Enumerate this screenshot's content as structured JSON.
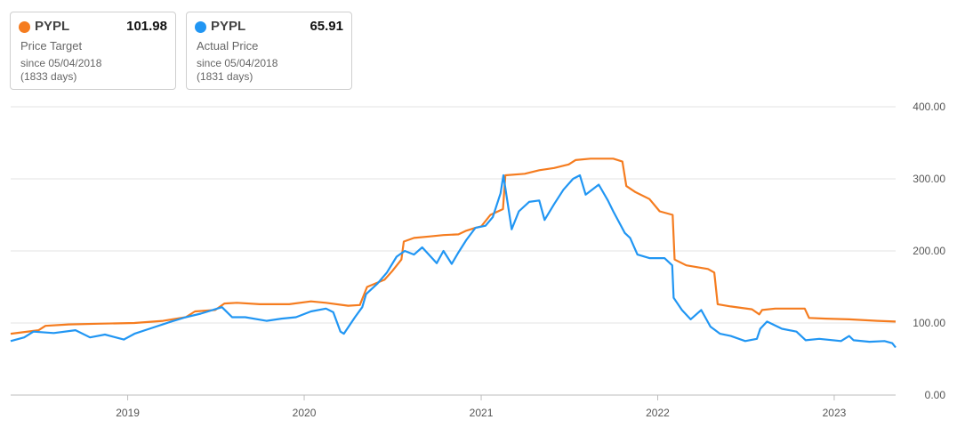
{
  "cards": [
    {
      "ticker": "PYPL",
      "value": "101.98",
      "label": "Price Target",
      "since": "since 05/04/2018",
      "days": "(1833 days)",
      "color": "#f57c1f"
    },
    {
      "ticker": "PYPL",
      "value": "65.91",
      "label": "Actual Price",
      "since": "since 05/04/2018",
      "days": "(1831 days)",
      "color": "#2196f3"
    }
  ],
  "chart_data": {
    "type": "line",
    "ylim": [
      0,
      400
    ],
    "y_ticks": [
      "400.00",
      "300.00",
      "200.00",
      "100.00",
      "0.00"
    ],
    "xlim": [
      "2018-05-04",
      "2023-05-08"
    ],
    "x_ticks": [
      "2019",
      "2020",
      "2021",
      "2022",
      "2023"
    ],
    "grid": true,
    "series": [
      {
        "name": "Price Target",
        "color": "#f57c1f",
        "points": [
          [
            "2018-05-04",
            85
          ],
          [
            "2018-07-01",
            90
          ],
          [
            "2018-07-15",
            96
          ],
          [
            "2018-09-01",
            98
          ],
          [
            "2018-11-01",
            99
          ],
          [
            "2019-01-15",
            100
          ],
          [
            "2019-03-15",
            103
          ],
          [
            "2019-05-01",
            108
          ],
          [
            "2019-05-20",
            116
          ],
          [
            "2019-07-01",
            118
          ],
          [
            "2019-07-20",
            127
          ],
          [
            "2019-08-15",
            128
          ],
          [
            "2019-10-01",
            126
          ],
          [
            "2019-12-01",
            126
          ],
          [
            "2020-01-15",
            130
          ],
          [
            "2020-02-15",
            128
          ],
          [
            "2020-04-01",
            124
          ],
          [
            "2020-04-25",
            125
          ],
          [
            "2020-05-10",
            150
          ],
          [
            "2020-06-15",
            160
          ],
          [
            "2020-07-01",
            172
          ],
          [
            "2020-07-20",
            188
          ],
          [
            "2020-07-25",
            213
          ],
          [
            "2020-08-15",
            218
          ],
          [
            "2020-09-15",
            220
          ],
          [
            "2020-10-15",
            222
          ],
          [
            "2020-11-15",
            223
          ],
          [
            "2020-12-01",
            228
          ],
          [
            "2020-12-20",
            232
          ],
          [
            "2021-01-01",
            234
          ],
          [
            "2021-01-20",
            250
          ],
          [
            "2021-02-15",
            258
          ],
          [
            "2021-02-20",
            305
          ],
          [
            "2021-04-01",
            307
          ],
          [
            "2021-05-01",
            312
          ],
          [
            "2021-06-01",
            315
          ],
          [
            "2021-07-01",
            320
          ],
          [
            "2021-07-15",
            326
          ],
          [
            "2021-08-15",
            328
          ],
          [
            "2021-10-01",
            328
          ],
          [
            "2021-10-20",
            324
          ],
          [
            "2021-10-28",
            290
          ],
          [
            "2021-11-15",
            282
          ],
          [
            "2021-12-15",
            272
          ],
          [
            "2022-01-05",
            255
          ],
          [
            "2022-02-01",
            250
          ],
          [
            "2022-02-05",
            188
          ],
          [
            "2022-03-01",
            180
          ],
          [
            "2022-04-15",
            175
          ],
          [
            "2022-04-28",
            170
          ],
          [
            "2022-05-05",
            126
          ],
          [
            "2022-06-01",
            123
          ],
          [
            "2022-07-15",
            119
          ],
          [
            "2022-07-30",
            112
          ],
          [
            "2022-08-05",
            118
          ],
          [
            "2022-09-01",
            120
          ],
          [
            "2022-11-01",
            120
          ],
          [
            "2022-11-10",
            107
          ],
          [
            "2022-12-15",
            106
          ],
          [
            "2023-02-01",
            105
          ],
          [
            "2023-04-01",
            103
          ],
          [
            "2023-05-08",
            102
          ]
        ]
      },
      {
        "name": "Actual Price",
        "color": "#2196f3",
        "points": [
          [
            "2018-05-04",
            75
          ],
          [
            "2018-06-01",
            80
          ],
          [
            "2018-06-20",
            88
          ],
          [
            "2018-08-01",
            86
          ],
          [
            "2018-09-15",
            90
          ],
          [
            "2018-10-15",
            80
          ],
          [
            "2018-11-15",
            84
          ],
          [
            "2018-12-24",
            77
          ],
          [
            "2019-01-15",
            85
          ],
          [
            "2019-02-15",
            92
          ],
          [
            "2019-04-01",
            102
          ],
          [
            "2019-05-01",
            108
          ],
          [
            "2019-06-01",
            113
          ],
          [
            "2019-07-15",
            122
          ],
          [
            "2019-08-05",
            108
          ],
          [
            "2019-09-01",
            108
          ],
          [
            "2019-10-15",
            103
          ],
          [
            "2019-11-15",
            106
          ],
          [
            "2019-12-15",
            108
          ],
          [
            "2020-01-15",
            116
          ],
          [
            "2020-02-15",
            120
          ],
          [
            "2020-03-01",
            115
          ],
          [
            "2020-03-16",
            88
          ],
          [
            "2020-03-23",
            85
          ],
          [
            "2020-04-15",
            108
          ],
          [
            "2020-04-30",
            122
          ],
          [
            "2020-05-08",
            140
          ],
          [
            "2020-06-01",
            155
          ],
          [
            "2020-06-20",
            170
          ],
          [
            "2020-07-10",
            192
          ],
          [
            "2020-07-27",
            200
          ],
          [
            "2020-08-15",
            195
          ],
          [
            "2020-09-01",
            205
          ],
          [
            "2020-10-01",
            183
          ],
          [
            "2020-10-15",
            200
          ],
          [
            "2020-11-01",
            182
          ],
          [
            "2020-11-15",
            198
          ],
          [
            "2020-12-01",
            215
          ],
          [
            "2020-12-20",
            232
          ],
          [
            "2021-01-10",
            235
          ],
          [
            "2021-01-25",
            247
          ],
          [
            "2021-02-10",
            280
          ],
          [
            "2021-02-16",
            305
          ],
          [
            "2021-03-05",
            230
          ],
          [
            "2021-03-20",
            255
          ],
          [
            "2021-04-10",
            268
          ],
          [
            "2021-05-01",
            270
          ],
          [
            "2021-05-12",
            243
          ],
          [
            "2021-06-01",
            265
          ],
          [
            "2021-06-20",
            285
          ],
          [
            "2021-07-10",
            300
          ],
          [
            "2021-07-24",
            305
          ],
          [
            "2021-08-05",
            278
          ],
          [
            "2021-09-01",
            292
          ],
          [
            "2021-09-20",
            270
          ],
          [
            "2021-10-01",
            255
          ],
          [
            "2021-10-25",
            225
          ],
          [
            "2021-11-05",
            218
          ],
          [
            "2021-11-20",
            195
          ],
          [
            "2021-12-15",
            190
          ],
          [
            "2022-01-15",
            190
          ],
          [
            "2022-01-31",
            180
          ],
          [
            "2022-02-03",
            135
          ],
          [
            "2022-02-20",
            118
          ],
          [
            "2022-03-10",
            105
          ],
          [
            "2022-04-01",
            118
          ],
          [
            "2022-04-20",
            95
          ],
          [
            "2022-05-10",
            85
          ],
          [
            "2022-06-01",
            82
          ],
          [
            "2022-07-01",
            75
          ],
          [
            "2022-07-25",
            78
          ],
          [
            "2022-08-01",
            92
          ],
          [
            "2022-08-15",
            102
          ],
          [
            "2022-09-15",
            92
          ],
          [
            "2022-10-15",
            88
          ],
          [
            "2022-11-03",
            76
          ],
          [
            "2022-12-01",
            78
          ],
          [
            "2023-01-15",
            75
          ],
          [
            "2023-02-01",
            82
          ],
          [
            "2023-02-10",
            76
          ],
          [
            "2023-03-15",
            74
          ],
          [
            "2023-04-15",
            75
          ],
          [
            "2023-05-01",
            72
          ],
          [
            "2023-05-08",
            66
          ]
        ]
      }
    ]
  }
}
